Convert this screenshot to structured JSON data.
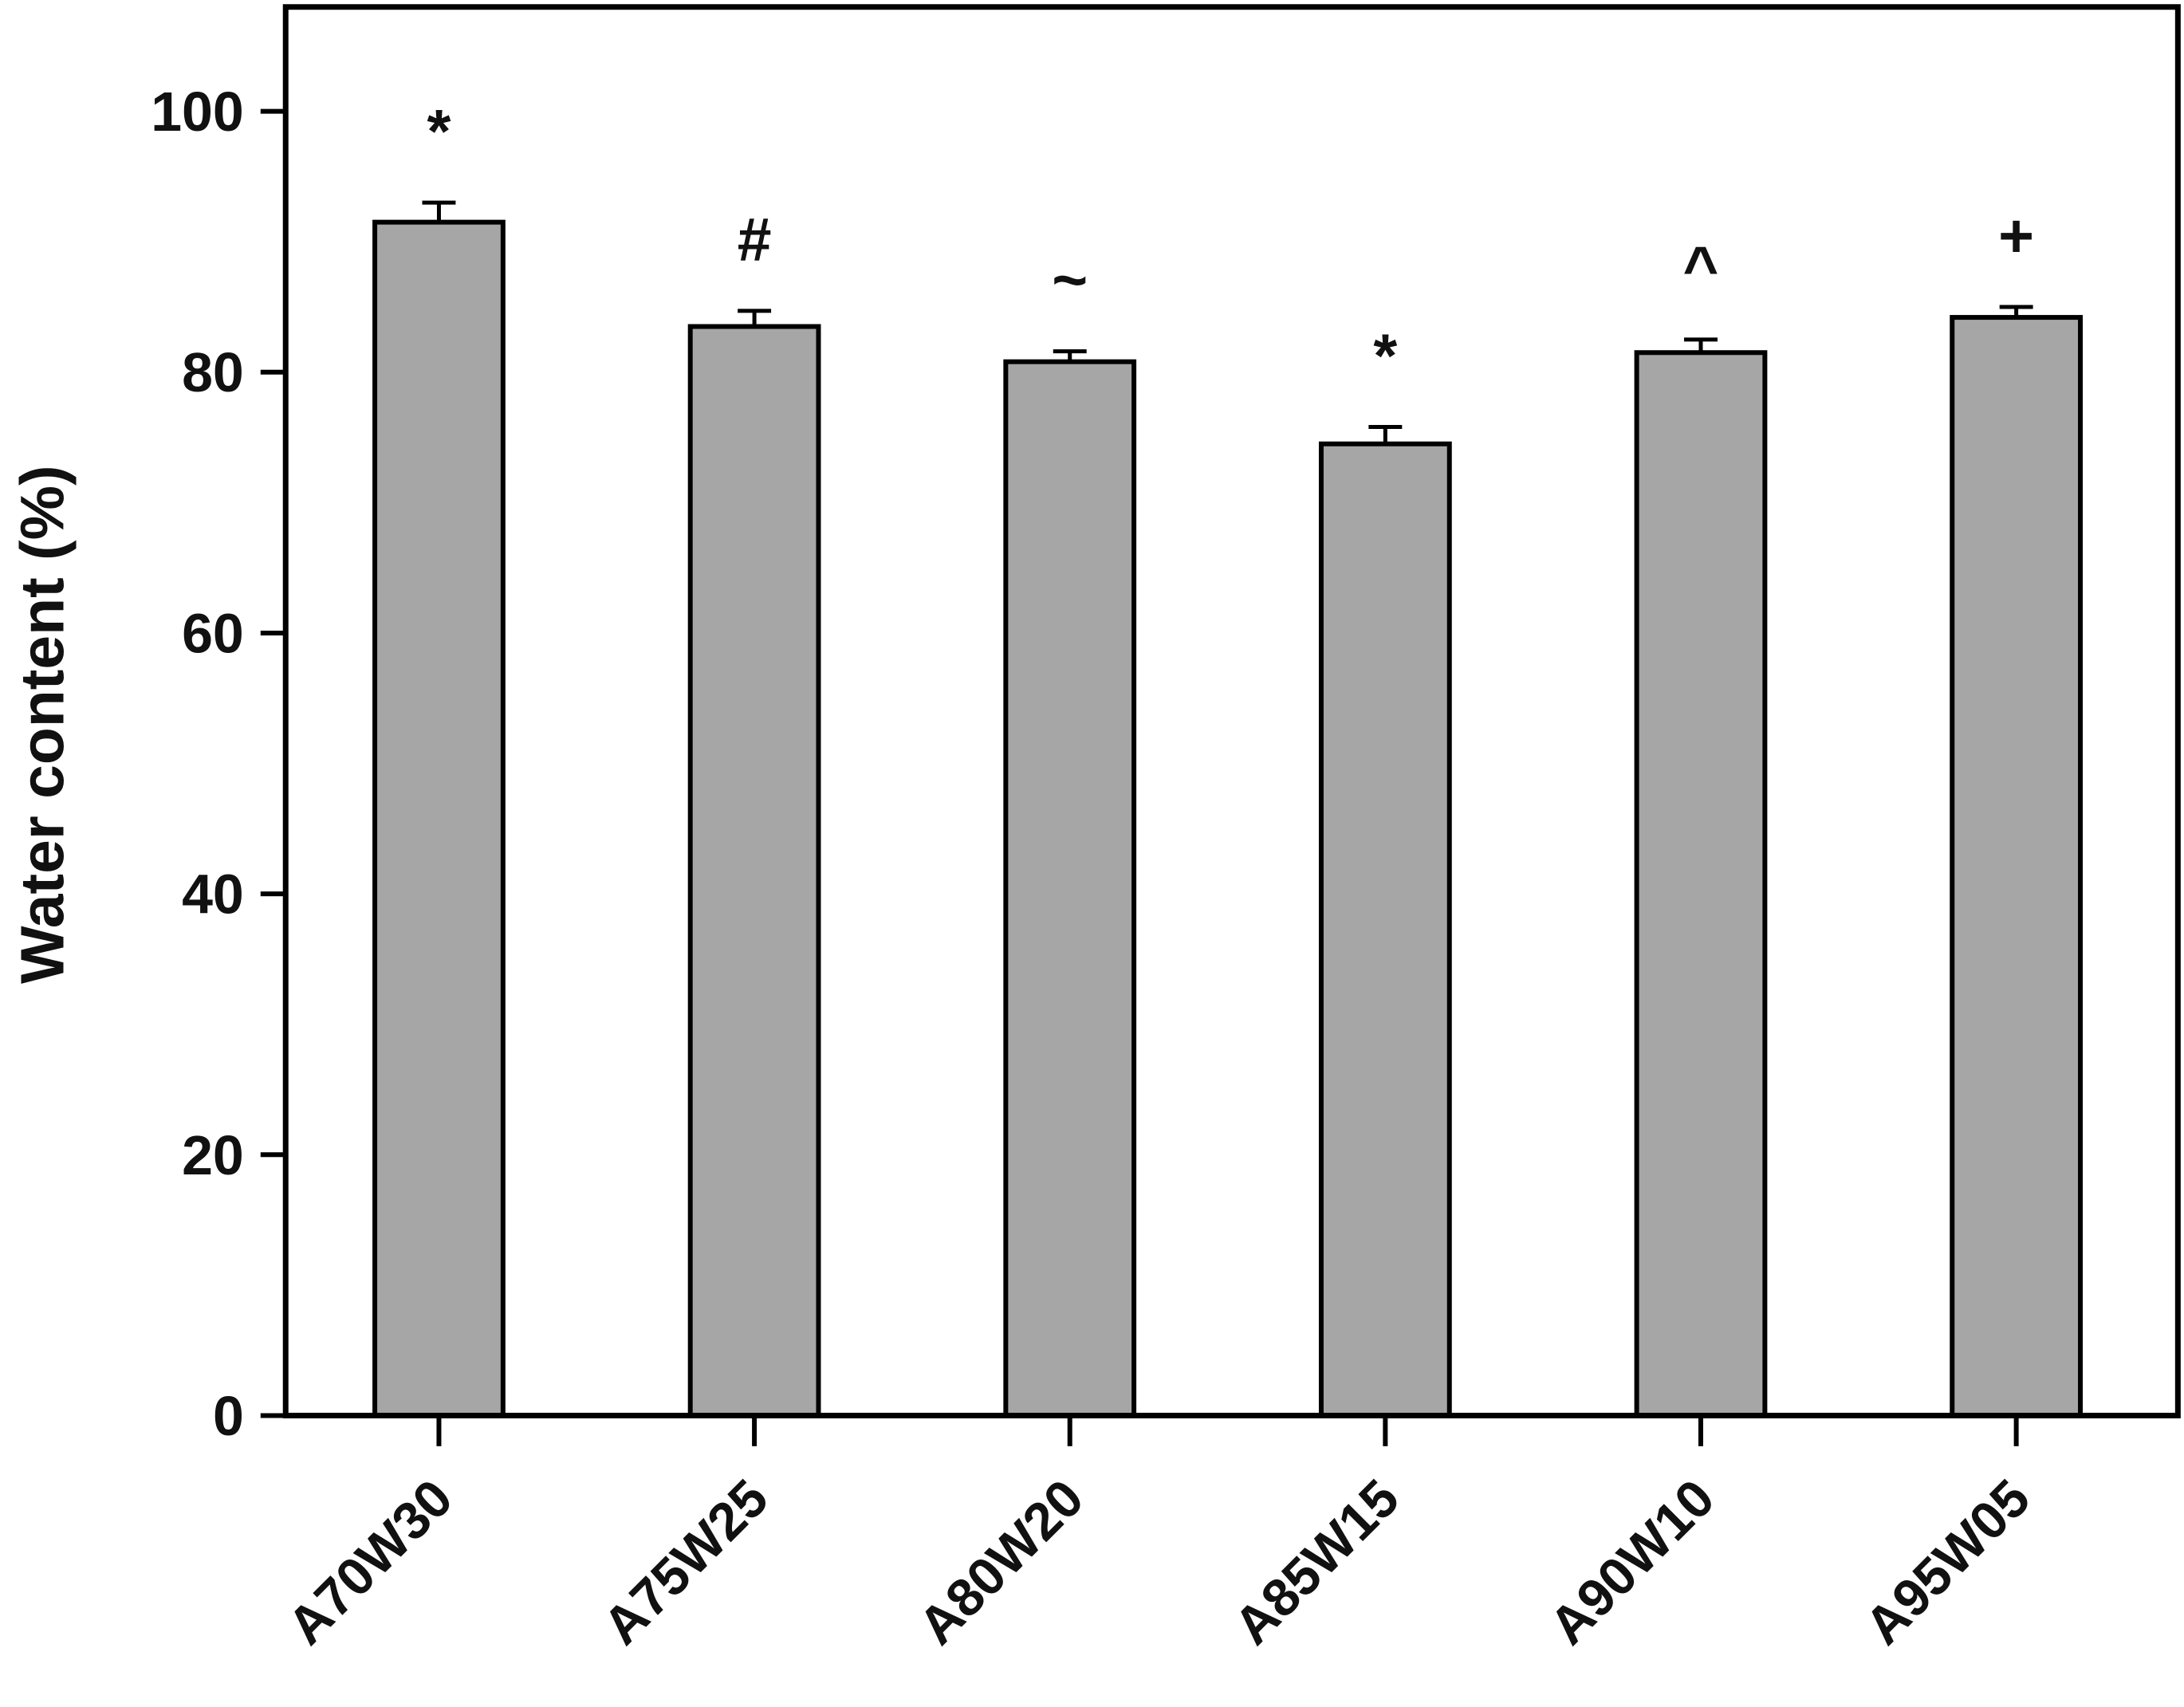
{
  "chart_data": {
    "type": "bar",
    "title": "",
    "xlabel": "",
    "ylabel": "Water content (%)",
    "ylim": [
      0,
      108
    ],
    "yticks": [
      0,
      20,
      40,
      60,
      80,
      100
    ],
    "grid": false,
    "categories": [
      "A70W30",
      "A75W25",
      "A80W20",
      "A85W15",
      "A90W10",
      "A95W05"
    ],
    "series": [
      {
        "values": [
          91.5,
          83.5,
          80.8,
          74.5,
          81.5,
          84.2
        ],
        "errors": [
          1.5,
          1.2,
          0.8,
          1.3,
          1.0,
          0.8
        ],
        "annotations": [
          "*",
          "#",
          "~",
          "*",
          "^",
          "+"
        ]
      }
    ],
    "colors": {
      "bar_fill": "#a6a6a6",
      "bar_edge": "#000000",
      "axis": "#000000",
      "text": "#111111"
    }
  }
}
